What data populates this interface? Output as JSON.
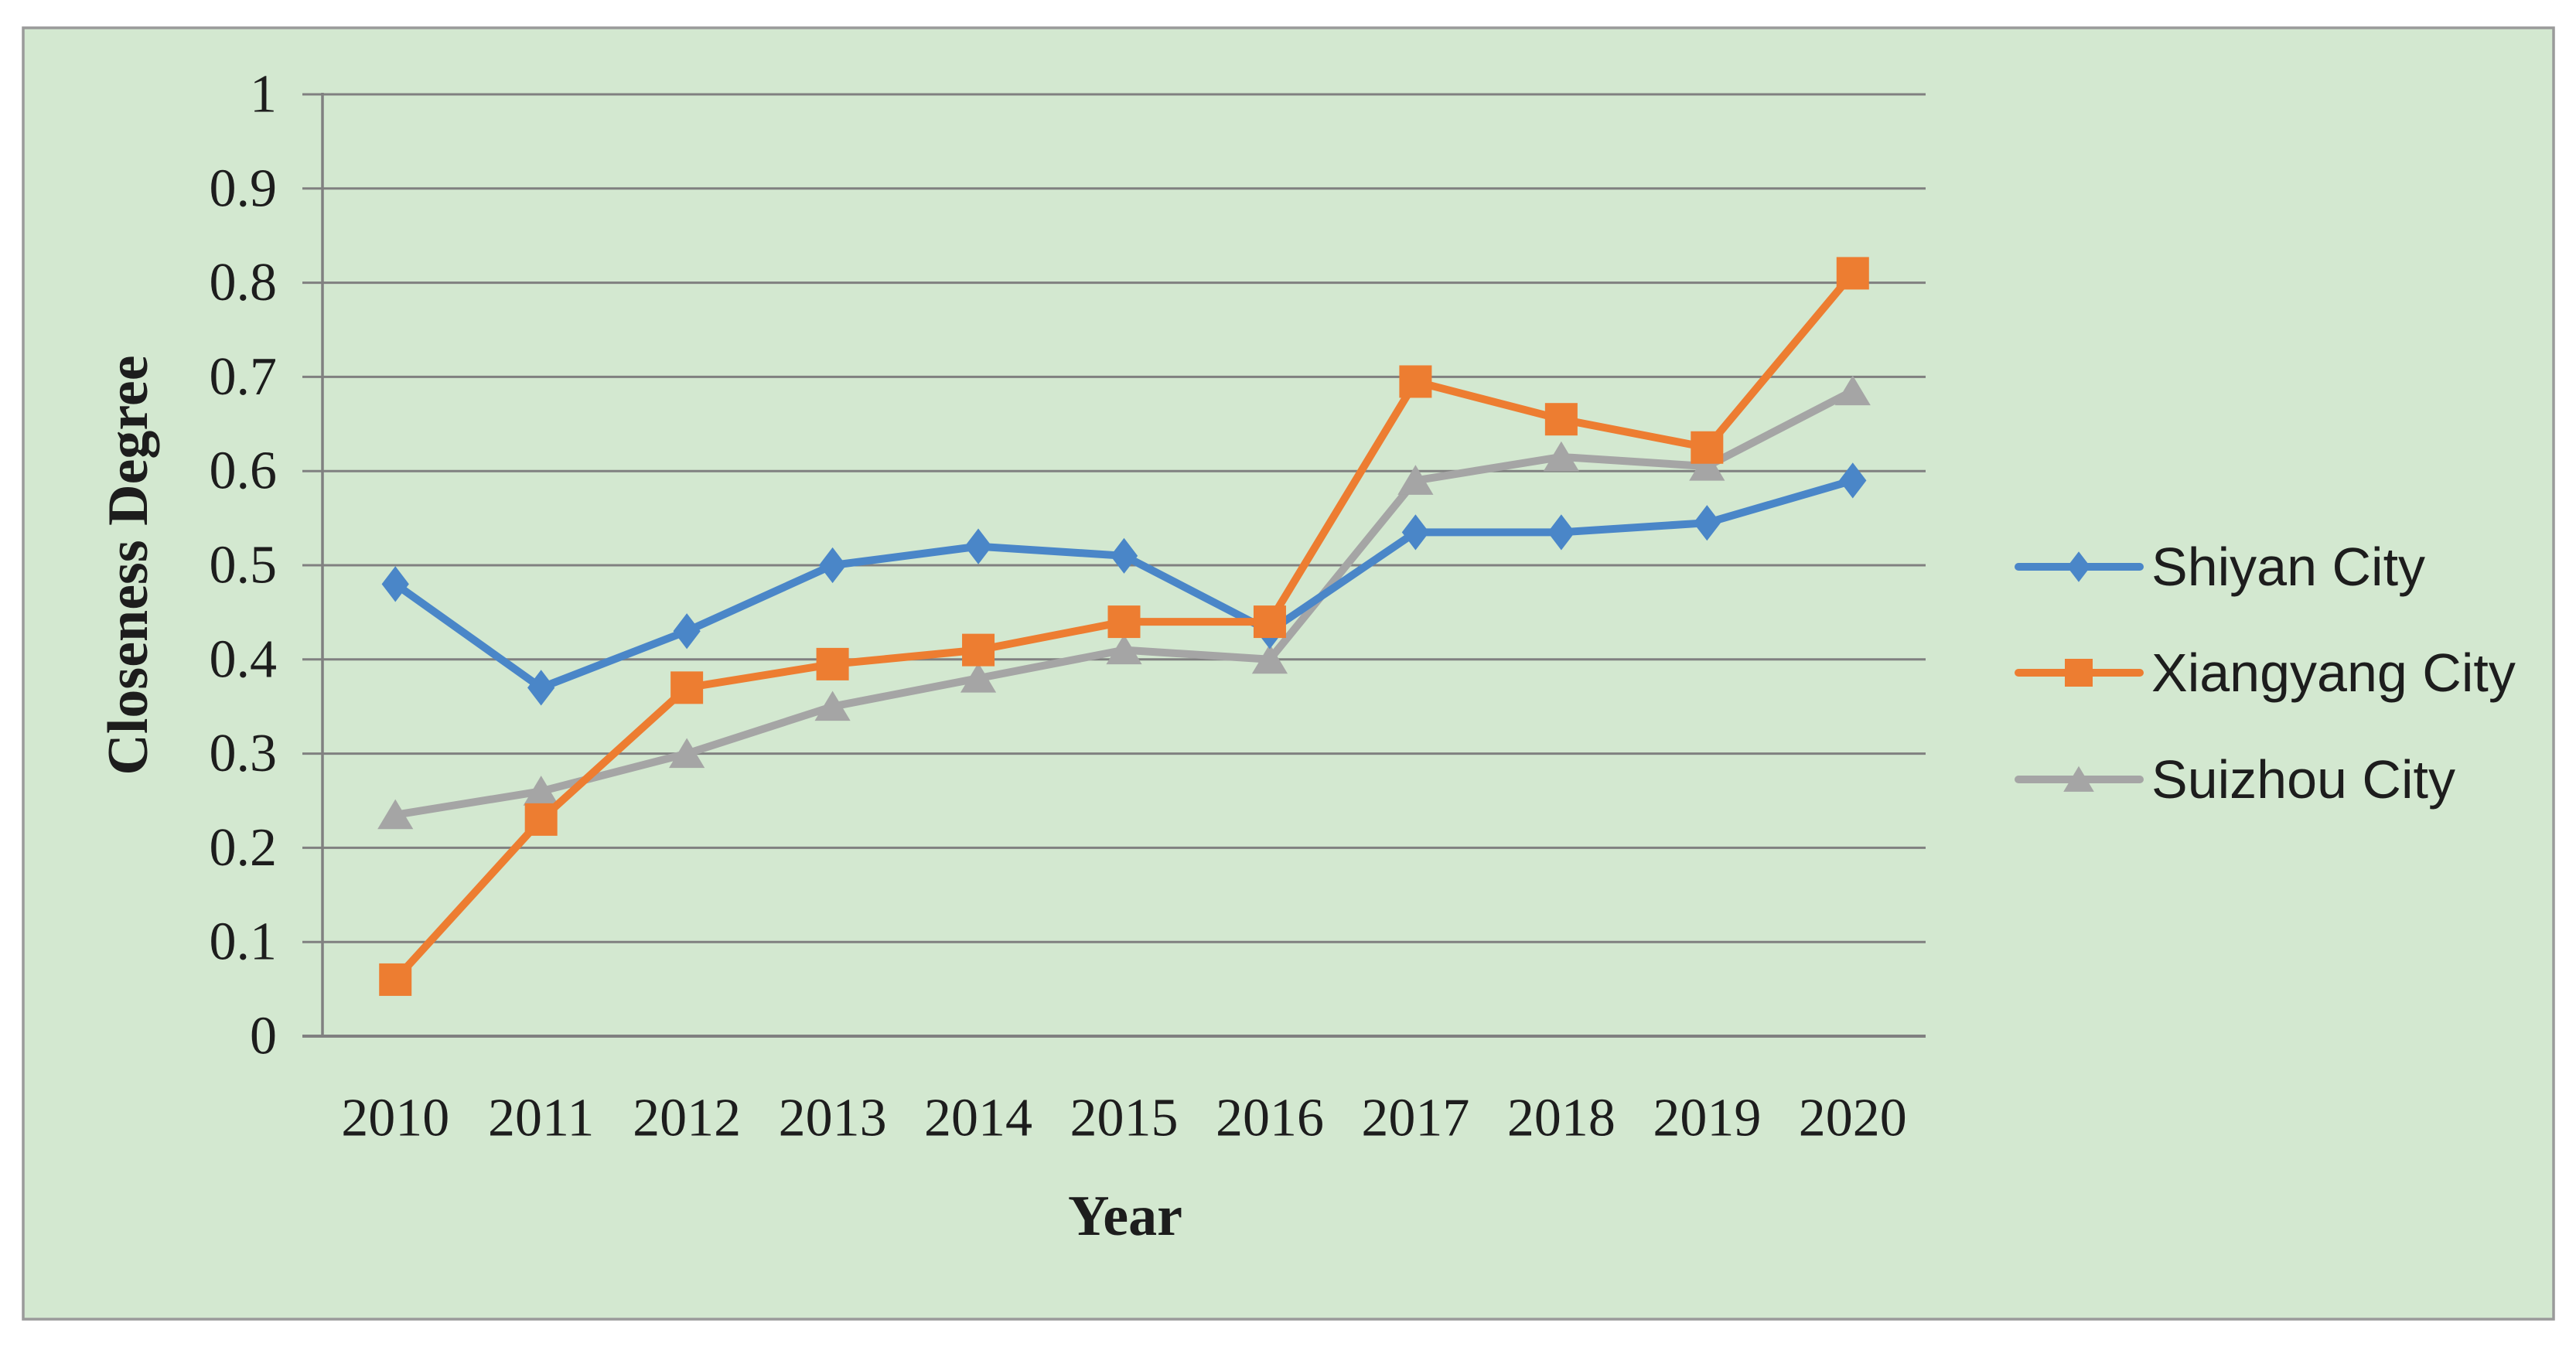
{
  "theme": {
    "page_background": "#ffffff",
    "panel_fill": "#d3e8d0",
    "panel_border": "#9a9a9a",
    "grid_color": "#808080",
    "axis_color": "#808080",
    "text_color": "#1d1d1d"
  },
  "chart_data": {
    "type": "line",
    "title": "",
    "xlabel": "Year",
    "ylabel": "Closeness Degree",
    "categories": [
      "2010",
      "2011",
      "2012",
      "2013",
      "2014",
      "2015",
      "2016",
      "2017",
      "2018",
      "2019",
      "2020"
    ],
    "ylim": [
      0,
      1
    ],
    "ytick_step": 0.1,
    "ytick_labels": [
      "0",
      "0.1",
      "0.2",
      "0.3",
      "0.4",
      "0.5",
      "0.6",
      "0.7",
      "0.8",
      "0.9",
      "1"
    ],
    "grid": "horizontal",
    "legend_position": "right-middle",
    "series": [
      {
        "name": "Shiyan City",
        "color": "#4a86c8",
        "marker": "diamond",
        "values": [
          0.48,
          0.37,
          0.43,
          0.5,
          0.52,
          0.51,
          0.43,
          0.535,
          0.535,
          0.545,
          0.59
        ]
      },
      {
        "name": "Xiangyang City",
        "color": "#ed7d31",
        "marker": "square",
        "values": [
          0.06,
          0.23,
          0.37,
          0.395,
          0.41,
          0.44,
          0.44,
          0.695,
          0.655,
          0.625,
          0.81
        ]
      },
      {
        "name": "Suizhou City",
        "color": "#a5a5a5",
        "marker": "triangle",
        "values": [
          0.235,
          0.26,
          0.3,
          0.35,
          0.38,
          0.41,
          0.4,
          0.59,
          0.615,
          0.605,
          0.685
        ]
      }
    ]
  }
}
